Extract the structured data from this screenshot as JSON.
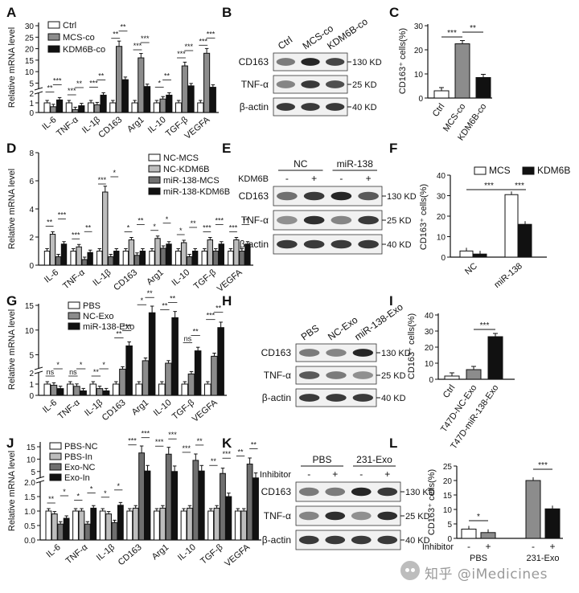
{
  "figure": {
    "panel_labels": [
      "A",
      "B",
      "C",
      "D",
      "E",
      "F",
      "G",
      "H",
      "I",
      "J",
      "K",
      "L"
    ],
    "watermark": "知乎 @iMedicines"
  },
  "chart_data": [
    {
      "panel": "A",
      "type": "bar",
      "ylabel": "Relative mRNA level",
      "yticks": [
        "0",
        "1",
        "2",
        "5",
        "10",
        "15",
        "20",
        "25",
        "30"
      ],
      "categories": [
        "IL-6",
        "TNF-α",
        "IL-1β",
        "CD163",
        "Arg1",
        "IL-10",
        "TGF-β",
        "VEGFA"
      ],
      "series": [
        {
          "name": "Ctrl",
          "values": [
            1.0,
            1.0,
            1.0,
            1.0,
            1.0,
            1.0,
            1.0,
            1.0
          ]
        },
        {
          "name": "MCS-co",
          "values": [
            0.6,
            0.3,
            0.8,
            21.0,
            16.0,
            1.4,
            12.5,
            18.0
          ]
        },
        {
          "name": "KDM6B-co",
          "values": [
            1.3,
            0.7,
            1.8,
            6.5,
            3.5,
            1.8,
            3.8,
            3.2
          ]
        }
      ],
      "annotations": [
        "**",
        "***",
        "***",
        "**",
        "***",
        "**",
        "**",
        "**",
        "***",
        "***",
        "*",
        "**",
        "***",
        "***",
        "***",
        "***"
      ]
    },
    {
      "panel": "B",
      "type": "table",
      "lanes": [
        "Ctrl",
        "MCS-co",
        "KDM6B-co"
      ],
      "rows": [
        {
          "protein": "CD163",
          "size": "130 KD"
        },
        {
          "protein": "TNF-α",
          "size": "25 KD"
        },
        {
          "protein": "β-actin",
          "size": "40 KD"
        }
      ]
    },
    {
      "panel": "C",
      "type": "bar",
      "ylabel": "CD163⁺ cells(%)",
      "yticks": [
        "0",
        "10",
        "20",
        "30"
      ],
      "categories": [
        "Ctrl",
        "MCS-co",
        "KDM6B-co"
      ],
      "values": [
        3.0,
        22.5,
        8.5
      ],
      "colors": [
        "#ffffff",
        "#8c8c8c",
        "#111111"
      ],
      "annotations": [
        "***",
        "**"
      ]
    },
    {
      "panel": "D",
      "type": "bar",
      "ylabel": "Relative mRNA level",
      "yticks": [
        "0",
        "2",
        "4",
        "6",
        "8"
      ],
      "categories": [
        "IL-6",
        "TNF-α",
        "IL-1β",
        "CD163",
        "Arg1",
        "IL-10",
        "TGF-β",
        "VEGFA"
      ],
      "series": [
        {
          "name": "NC-MCS",
          "values": [
            1.0,
            1.0,
            1.0,
            1.0,
            1.0,
            1.0,
            1.0,
            1.0
          ]
        },
        {
          "name": "NC-KDM6B",
          "values": [
            2.2,
            1.3,
            5.2,
            1.8,
            1.9,
            1.6,
            1.8,
            1.8
          ]
        },
        {
          "name": "miR-138-MCS",
          "values": [
            0.6,
            0.4,
            0.6,
            0.7,
            1.2,
            0.6,
            1.0,
            1.0
          ]
        },
        {
          "name": "miR-138-KDM6B",
          "values": [
            1.5,
            0.9,
            1.0,
            1.0,
            1.5,
            1.0,
            1.5,
            1.5
          ]
        }
      ],
      "annotations": [
        "**",
        "***",
        "***",
        "**",
        "***",
        "*",
        "*",
        "**",
        "*",
        "*",
        "*",
        "**",
        "***",
        "***",
        "***",
        "**"
      ]
    },
    {
      "panel": "E",
      "type": "table",
      "group_labels": [
        "NC",
        "miR-138"
      ],
      "row_label": "KDM6B",
      "lane_signs": [
        "-",
        "+",
        "-",
        "+"
      ],
      "rows": [
        {
          "protein": "CD163",
          "size": "130 KD"
        },
        {
          "protein": "TNF-α",
          "size": "25 KD"
        },
        {
          "protein": "β-actin",
          "size": "40 KD"
        }
      ]
    },
    {
      "panel": "F",
      "type": "bar",
      "ylabel": "CD163⁺ cells(%)",
      "yticks": [
        "0",
        "10",
        "20",
        "30",
        "40"
      ],
      "categories": [
        "NC",
        "miR-138"
      ],
      "series": [
        {
          "name": "MCS",
          "values": [
            3.0,
            30.5
          ]
        },
        {
          "name": "KDM6B",
          "values": [
            1.5,
            16.0
          ]
        }
      ],
      "annotations": [
        "***",
        "***"
      ]
    },
    {
      "panel": "G",
      "type": "bar",
      "ylabel": "Relative mRNA level",
      "yticks": [
        "0",
        "1",
        "2",
        "5",
        "10",
        "15"
      ],
      "categories": [
        "IL-6",
        "TNF-α",
        "IL-1β",
        "CD163",
        "Arg1",
        "IL-10",
        "TGF-β",
        "VEGFA"
      ],
      "series": [
        {
          "name": "PBS",
          "values": [
            1.0,
            1.0,
            1.0,
            1.0,
            1.0,
            1.0,
            1.0,
            1.0
          ]
        },
        {
          "name": "NC-Exo",
          "values": [
            0.9,
            0.8,
            0.6,
            2.1,
            3.8,
            3.3,
            1.9,
            4.7
          ]
        },
        {
          "name": "miR-138-Exo",
          "values": [
            0.6,
            0.4,
            0.4,
            6.8,
            13.5,
            12.5,
            5.8,
            10.5
          ]
        }
      ],
      "annotations": [
        "ns",
        "*",
        "ns",
        "*",
        "**",
        "*",
        "**",
        "***",
        "*",
        "**",
        "**",
        "**",
        "ns",
        "**",
        "***",
        "**"
      ]
    },
    {
      "panel": "H",
      "type": "table",
      "lanes": [
        "PBS",
        "NC-Exo",
        "miR-138-Exo"
      ],
      "rows": [
        {
          "protein": "CD163",
          "size": "130 KD"
        },
        {
          "protein": "TNF-α",
          "size": "25 KD"
        },
        {
          "protein": "β-actin",
          "size": "40 KD"
        }
      ]
    },
    {
      "panel": "I",
      "type": "bar",
      "ylabel": "CD163⁺ cells(%)",
      "yticks": [
        "0",
        "10",
        "20",
        "30",
        "40"
      ],
      "categories": [
        "Ctrl",
        "T47D-NC-Exo",
        "T47D-miR-138-Exo"
      ],
      "values": [
        2.0,
        6.0,
        26.5
      ],
      "colors": [
        "#ffffff",
        "#8c8c8c",
        "#111111"
      ],
      "annotations": [
        "***"
      ]
    },
    {
      "panel": "J",
      "type": "bar",
      "ylabel": "Relative mRNA level",
      "yticks": [
        "0.0",
        "0.5",
        "1.0",
        "1.5",
        "2.0",
        "5",
        "10",
        "15"
      ],
      "categories": [
        "IL-6",
        "TNF-α",
        "IL-1β",
        "CD163",
        "Arg1",
        "IL-10",
        "TGF-β",
        "VEGFA"
      ],
      "series": [
        {
          "name": "PBS-NC",
          "values": [
            1.0,
            1.0,
            1.0,
            1.0,
            1.0,
            1.0,
            1.0,
            1.0
          ]
        },
        {
          "name": "PBS-In",
          "values": [
            0.9,
            1.0,
            0.9,
            1.1,
            1.1,
            1.1,
            1.1,
            1.0
          ]
        },
        {
          "name": "Exo-NC",
          "values": [
            0.55,
            0.55,
            0.6,
            12.5,
            12.0,
            9.5,
            4.2,
            8.0
          ]
        },
        {
          "name": "Exo-In",
          "values": [
            0.75,
            1.1,
            1.2,
            5.2,
            5.0,
            5.2,
            1.5,
            2.4
          ]
        }
      ],
      "annotations": [
        "**",
        "*",
        "*",
        "*",
        "*",
        "*",
        "***",
        "***",
        "***",
        "***",
        "***",
        "**",
        "**",
        "***",
        "**",
        "**"
      ]
    },
    {
      "panel": "K",
      "type": "table",
      "group_labels": [
        "PBS",
        "231-Exo"
      ],
      "row_label": "Inhibitor",
      "lane_signs": [
        "-",
        "+",
        "-",
        "+"
      ],
      "rows": [
        {
          "protein": "CD163",
          "size": "130 KD"
        },
        {
          "protein": "TNF-α",
          "size": "25 KD"
        },
        {
          "protein": "β-actin",
          "size": "40 KD"
        }
      ]
    },
    {
      "panel": "L",
      "type": "bar",
      "ylabel": "CD163⁺ cells(%)",
      "yticks": [
        "0",
        "5",
        "10",
        "15",
        "20",
        "25"
      ],
      "row_label": "Inhibitor",
      "lane_signs": [
        "-",
        "+",
        "-",
        "+"
      ],
      "group_labels": [
        "PBS",
        "231-Exo"
      ],
      "values": [
        3.2,
        2.0,
        20.0,
        10.2
      ],
      "colors": [
        "#ffffff",
        "#8c8c8c",
        "#8c8c8c",
        "#111111"
      ],
      "annotations": [
        "*",
        "***"
      ]
    }
  ]
}
